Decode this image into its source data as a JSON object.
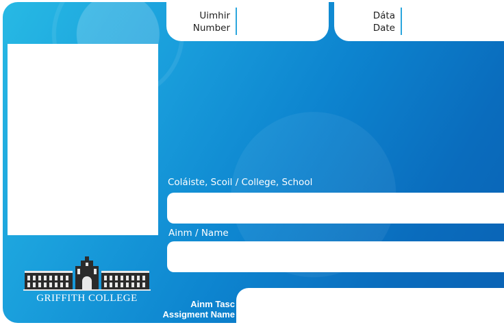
{
  "header": {
    "number_label_ga": "Uimhir",
    "number_label_en": "Number",
    "date_label_ga": "Dáta",
    "date_label_en": "Date"
  },
  "fields": {
    "college_label": "Coláiste, Scoil / College, School",
    "name_label": "Ainm / Name",
    "assignment_label_ga": "Ainm Tasc",
    "assignment_label_en": "Assigment Name"
  },
  "logo": {
    "text": "GRIFFITH COLLEGE"
  },
  "colors": {
    "accent": "#1a9fdc",
    "brand_dark": "#0a62b4",
    "box": "#ffffff"
  }
}
